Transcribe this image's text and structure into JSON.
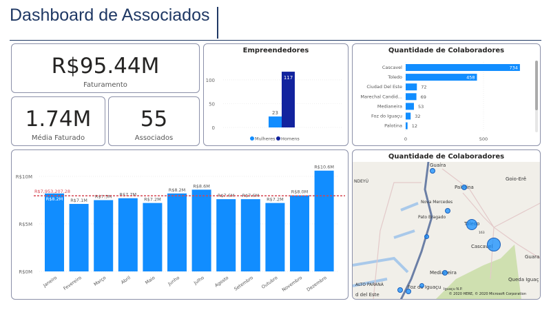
{
  "header": {
    "title": "Dashboard de Associados"
  },
  "kpis": {
    "faturamento": {
      "value": "R$95.44M",
      "label": "Faturamento"
    },
    "media": {
      "value": "1.74M",
      "label": "Média Faturado"
    },
    "associados": {
      "value": "55",
      "label": "Associados"
    }
  },
  "chart_data": [
    {
      "type": "bar",
      "title": "Empreendedores",
      "categories": [
        "Mulheres",
        "Homens"
      ],
      "values": [
        23,
        117
      ],
      "colors": [
        "#118dff",
        "#12239e"
      ],
      "yticks": [
        "0",
        "50",
        "100"
      ],
      "ylim": [
        0,
        120
      ],
      "legend": "bottom",
      "legend_entries": [
        "Mulheres",
        "Homens"
      ]
    },
    {
      "type": "bar",
      "orientation": "horizontal",
      "title": "Quantidade de Colaboradores",
      "categories": [
        "Cascavel",
        "Toledo",
        "Ciudad Del Este",
        "Marechal Candid...",
        "Medianeira",
        "Foz do Iguaçu",
        "Palotina"
      ],
      "values": [
        734,
        458,
        72,
        69,
        53,
        32,
        12
      ],
      "xticks": [
        "0",
        "500"
      ],
      "xlim": [
        0,
        800
      ],
      "color": "#118dff"
    },
    {
      "type": "bar",
      "categories": [
        "Janeiro",
        "Fevereiro",
        "Março",
        "Abril",
        "Maio",
        "Junho",
        "Julho",
        "Agosto",
        "Setembro",
        "Outubro",
        "Novembro",
        "Dezembro"
      ],
      "values": [
        8.2,
        7.1,
        7.5,
        7.7,
        7.2,
        8.2,
        8.6,
        7.6,
        7.6,
        7.2,
        8.0,
        10.6
      ],
      "labels": [
        "R$8.2M",
        "R$7.1M",
        "R$7.5M",
        "R$7.7M",
        "R$7.2M",
        "R$8.2M",
        "R$8.6M",
        "R$7.6M",
        "R$7.6M",
        "R$7.2M",
        "R$8.0M",
        "R$10.6M"
      ],
      "yticks": [
        "R$0M",
        "R$5M",
        "R$10M"
      ],
      "ylim": [
        0,
        11
      ],
      "average_line": {
        "value": 7.95320728,
        "label": "R$7,953,207.28",
        "color": "#d64550"
      },
      "color": "#118dff"
    }
  ],
  "map": {
    "title": "Quantidade de Colaboradores",
    "places": [
      "Guaíra",
      "Palotina",
      "Goio-Erê",
      "NDEYÚ",
      "Nova Mercedes",
      "Pato Bragado",
      "Toledo",
      "Cascavel",
      "Guara",
      "Medianeira",
      "ALTO PARANÁ",
      "d del Este",
      "Foz do Iguaçu",
      "Iguaçu N.P.",
      "Queda Iguaç",
      "163"
    ],
    "copyright": "© 2020 HERE, © 2020 Microsoft Corporation"
  }
}
